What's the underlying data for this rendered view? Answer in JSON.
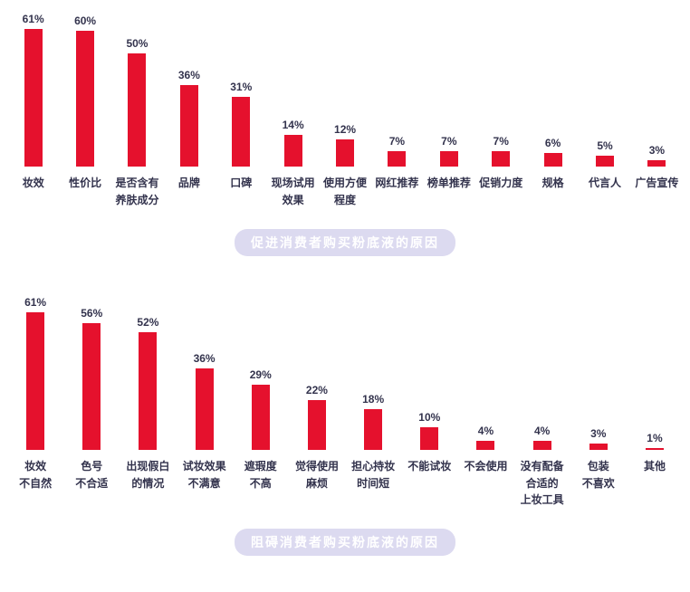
{
  "colors": {
    "bar": "#e5112d",
    "text": "#33334d",
    "pill_bg": "#dcdaf0",
    "pill_text": "#ffffff"
  },
  "chart_data": [
    {
      "type": "bar",
      "title": "促进消费者购买粉底液的原因",
      "categories": [
        "妆效",
        "性价比",
        "是否含有\n养肤成分",
        "品牌",
        "口碑",
        "现场试用\n效果",
        "使用方便\n程度",
        "网红推荐",
        "榜单推荐",
        "促销力度",
        "规格",
        "代言人",
        "广告宣传"
      ],
      "values": [
        61,
        60,
        50,
        36,
        31,
        14,
        12,
        7,
        7,
        7,
        6,
        5,
        3
      ],
      "value_suffix": "%",
      "xlabel": "",
      "ylabel": "",
      "ylim": [
        0,
        70
      ],
      "grid": false,
      "legend": "none",
      "bar_color": "#e5112d"
    },
    {
      "type": "bar",
      "title": "阻碍消费者购买粉底液的原因",
      "categories": [
        "妆效\n不自然",
        "色号\n不合适",
        "出现假白\n的情况",
        "试妆效果\n不满意",
        "遮瑕度\n不高",
        "觉得使用\n麻烦",
        "担心持妆\n时间短",
        "不能试妆",
        "不会使用",
        "没有配备\n合适的\n上妆工具",
        "包装\n不喜欢",
        "其他"
      ],
      "values": [
        61,
        56,
        52,
        36,
        29,
        22,
        18,
        10,
        4,
        4,
        3,
        1
      ],
      "value_suffix": "%",
      "xlabel": "",
      "ylabel": "",
      "ylim": [
        0,
        70
      ],
      "grid": false,
      "legend": "none",
      "bar_color": "#e5112d"
    }
  ]
}
